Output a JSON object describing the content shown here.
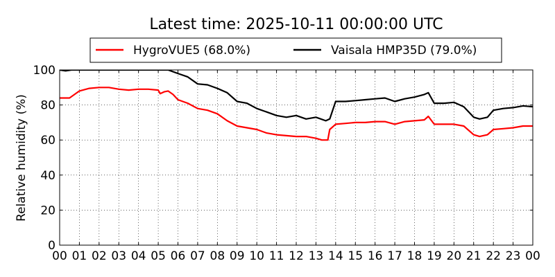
{
  "chart_data": {
    "type": "line",
    "title": "Latest time: 2025-10-11 00:00:00 UTC",
    "ylabel": "Relative humidity (%)",
    "xlabel": "",
    "ylim": [
      0,
      100
    ],
    "xlim": [
      0,
      24
    ],
    "grid": true,
    "legend_position": "top-center",
    "x_ticks": [
      "00",
      "01",
      "02",
      "03",
      "04",
      "05",
      "06",
      "07",
      "08",
      "09",
      "10",
      "11",
      "12",
      "13",
      "14",
      "15",
      "16",
      "17",
      "18",
      "19",
      "20",
      "21",
      "22",
      "23",
      "00"
    ],
    "y_ticks": [
      "0",
      "20",
      "40",
      "60",
      "80",
      "100"
    ],
    "series": [
      {
        "name": "HygroVUE5 (68.0%)",
        "color": "#ff0000",
        "x": [
          0,
          0.5,
          1,
          1.5,
          2,
          2.5,
          3,
          3.5,
          4,
          4.5,
          5,
          5.1,
          5.3,
          5.5,
          5.75,
          6,
          6.5,
          7,
          7.5,
          8,
          8.5,
          9,
          9.5,
          10,
          10.5,
          11,
          11.5,
          12,
          12.5,
          13,
          13.3,
          13.6,
          13.7,
          14,
          14.5,
          15,
          15.5,
          16,
          16.5,
          17,
          17.5,
          18,
          18.5,
          18.7,
          19,
          19.5,
          20,
          20.5,
          21,
          21.3,
          21.7,
          22,
          22.5,
          23,
          23.5,
          24
        ],
        "y": [
          84,
          84,
          88,
          89.5,
          90,
          90,
          89,
          88.5,
          89,
          89,
          88.5,
          86.5,
          87.5,
          88,
          86,
          83,
          81,
          78,
          77,
          75,
          71,
          68,
          67,
          66,
          64,
          63,
          62.5,
          62,
          62,
          61,
          60,
          60,
          66,
          69,
          69.5,
          70,
          70,
          70.5,
          70.5,
          69,
          70.5,
          71,
          71.5,
          73.5,
          69,
          69,
          69,
          68,
          63,
          62,
          63,
          66,
          66.5,
          67,
          68,
          68
        ]
      },
      {
        "name": "Vaisala HMP35D (79.0%)",
        "color": "#000000",
        "x": [
          0,
          0.3,
          0.6,
          5.5,
          6,
          6.5,
          7,
          7.5,
          8,
          8.5,
          9,
          9.5,
          10,
          10.5,
          11,
          11.5,
          12,
          12.5,
          13,
          13.5,
          13.7,
          14,
          14.5,
          15,
          15.5,
          16,
          16.5,
          17,
          17.5,
          18,
          18.5,
          18.7,
          19,
          19.5,
          20,
          20.5,
          21,
          21.3,
          21.7,
          22,
          22.5,
          23,
          23.5,
          24
        ],
        "y": [
          100,
          99.5,
          100,
          100,
          98,
          96,
          92,
          91.5,
          89.5,
          87,
          82,
          81,
          78,
          76,
          74,
          73,
          74,
          72,
          73,
          71,
          72,
          82,
          82,
          82.5,
          83,
          83.5,
          84,
          82,
          83.5,
          84.5,
          86,
          87,
          81,
          81,
          81.5,
          79,
          73,
          72,
          73,
          77,
          78,
          78.5,
          79.5,
          79
        ]
      }
    ]
  }
}
